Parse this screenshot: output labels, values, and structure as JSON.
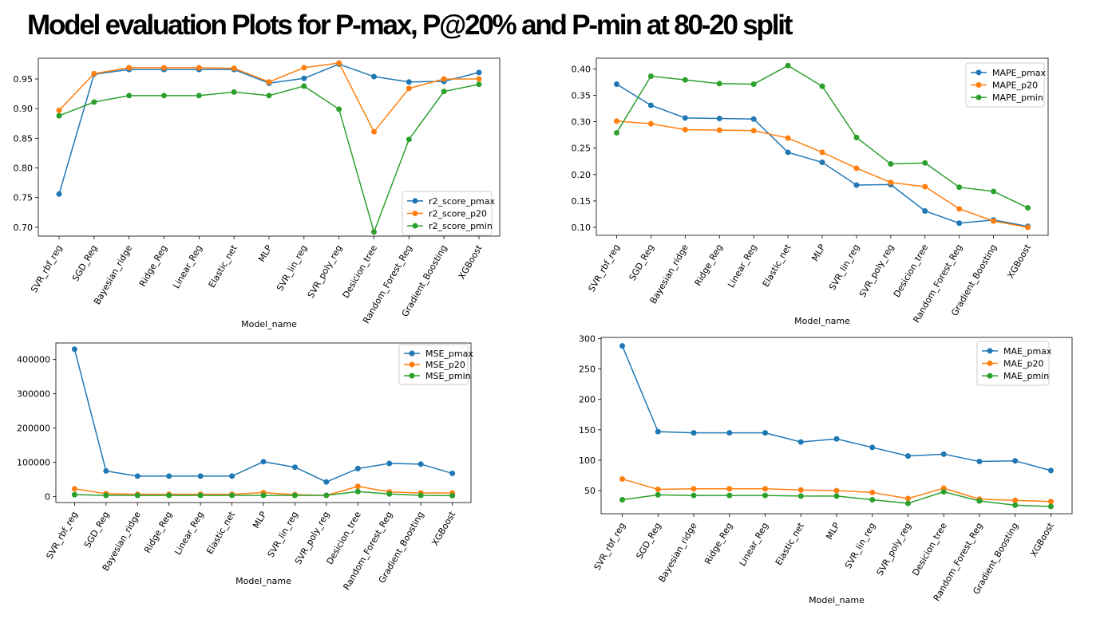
{
  "page": {
    "title": "Model evaluation Plots for P-max, P@20% and P-min at 80-20 split"
  },
  "colors": {
    "series1": "#1f77b4",
    "series2": "#ff7f0e",
    "series3": "#2ca02c"
  },
  "chart_data": [
    {
      "type": "line",
      "xlabel": "Model_name",
      "ylabel": "",
      "legend_position": "lower-right",
      "ylim": [
        0.685,
        0.985
      ],
      "yticks": [
        0.7,
        0.75,
        0.8,
        0.85,
        0.9,
        0.95
      ],
      "ytick_labels": [
        "0.70",
        "0.75",
        "0.80",
        "0.85",
        "0.90",
        "0.95"
      ],
      "categories": [
        "SVR_rbf_reg",
        "SGD_Reg",
        "Bayesian_ridge",
        "Ridge_Reg",
        "Linear_Reg",
        "Elastic_net",
        "MLP",
        "SVR_lin_reg",
        "SVR_poly_reg",
        "Desicion_tree",
        "Random_Forest_Reg",
        "Gradient_Boosting",
        "XGBoost"
      ],
      "series": [
        {
          "name": "r2_score_pmax",
          "values": [
            0.756,
            0.958,
            0.966,
            0.966,
            0.966,
            0.966,
            0.943,
            0.951,
            0.975,
            0.954,
            0.945,
            0.946,
            0.961
          ]
        },
        {
          "name": "r2_score_p20",
          "values": [
            0.897,
            0.959,
            0.969,
            0.969,
            0.969,
            0.968,
            0.945,
            0.969,
            0.977,
            0.861,
            0.934,
            0.95,
            0.95
          ]
        },
        {
          "name": "r2_score_pmin",
          "values": [
            0.888,
            0.911,
            0.922,
            0.922,
            0.922,
            0.928,
            0.922,
            0.938,
            0.899,
            0.692,
            0.848,
            0.929,
            0.941
          ]
        }
      ]
    },
    {
      "type": "line",
      "xlabel": "Model_name",
      "ylabel": "",
      "legend_position": "upper-right",
      "ylim": [
        0.085,
        0.42
      ],
      "yticks": [
        0.1,
        0.15,
        0.2,
        0.25,
        0.3,
        0.35,
        0.4
      ],
      "ytick_labels": [
        "0.10",
        "0.15",
        "0.20",
        "0.25",
        "0.30",
        "0.35",
        "0.40"
      ],
      "categories": [
        "SVR_rbf_reg",
        "SGD_Reg",
        "Bayesian_ridge",
        "Ridge_Reg",
        "Linear_Reg",
        "Elastic_net",
        "MLP",
        "SVR_lin_reg",
        "SVR_poly_reg",
        "Desicion_tree",
        "Random_Forest_Reg",
        "Gradient_Boosting",
        "XGBoost"
      ],
      "series": [
        {
          "name": "MAPE_pmax",
          "values": [
            0.371,
            0.331,
            0.307,
            0.306,
            0.305,
            0.242,
            0.223,
            0.18,
            0.181,
            0.131,
            0.108,
            0.114,
            0.102
          ]
        },
        {
          "name": "MAPE_p20",
          "values": [
            0.301,
            0.296,
            0.285,
            0.284,
            0.283,
            0.269,
            0.242,
            0.212,
            0.185,
            0.177,
            0.135,
            0.112,
            0.1
          ]
        },
        {
          "name": "MAPE_pmin",
          "values": [
            0.279,
            0.386,
            0.379,
            0.372,
            0.371,
            0.406,
            0.367,
            0.27,
            0.22,
            0.222,
            0.176,
            0.168,
            0.137
          ]
        }
      ]
    },
    {
      "type": "line",
      "xlabel": "Model_name",
      "ylabel": "",
      "legend_position": "upper-right",
      "ylim": [
        -17000,
        448000
      ],
      "yticks": [
        0,
        100000,
        200000,
        300000,
        400000
      ],
      "ytick_labels": [
        "0",
        "100000",
        "200000",
        "300000",
        "400000"
      ],
      "categories": [
        "SVR_rbf_reg",
        "SGD_Reg",
        "Bayesian_ridge",
        "Ridge_Reg",
        "Linear_Reg",
        "Elastic_net",
        "MLP",
        "SVR_lin_reg",
        "SVR_poly_reg",
        "Desicion_tree",
        "Random_Forest_Reg",
        "Gradient_Boosting",
        "XGBoost"
      ],
      "series": [
        {
          "name": "MSE_pmax",
          "values": [
            430000,
            75000,
            60000,
            60000,
            60000,
            60000,
            102000,
            86000,
            43000,
            82000,
            97000,
            95000,
            68000
          ]
        },
        {
          "name": "MSE_p20",
          "values": [
            23000,
            9000,
            7000,
            7000,
            7000,
            7000,
            12000,
            6000,
            4000,
            30000,
            14000,
            11000,
            11000
          ]
        },
        {
          "name": "MSE_pmin",
          "values": [
            6000,
            4000,
            4000,
            4000,
            4000,
            4000,
            4000,
            4000,
            4000,
            15000,
            8000,
            4000,
            3000
          ]
        }
      ]
    },
    {
      "type": "line",
      "xlabel": "Model_name",
      "ylabel": "",
      "legend_position": "upper-right",
      "ylim": [
        12,
        302
      ],
      "yticks": [
        50,
        100,
        150,
        200,
        250,
        300
      ],
      "ytick_labels": [
        "50",
        "100",
        "150",
        "200",
        "250",
        "300"
      ],
      "categories": [
        "SVR_rbf_reg",
        "SGD_Reg",
        "Bayesian_ridge",
        "Ridge_Reg",
        "Linear_Reg",
        "Elastic_net",
        "MLP",
        "SVR_lin_reg",
        "SVR_poly_reg",
        "Desicion_tree",
        "Random_Forest_Reg",
        "Gradient_Boosting",
        "XGBoost"
      ],
      "series": [
        {
          "name": "MAE_pmax",
          "values": [
            288,
            147,
            145,
            145,
            145,
            130,
            135,
            121,
            107,
            110,
            98,
            99,
            83
          ]
        },
        {
          "name": "MAE_p20",
          "values": [
            69,
            52,
            53,
            53,
            53,
            51,
            50,
            47,
            37,
            54,
            36,
            34,
            32
          ]
        },
        {
          "name": "MAE_pmin",
          "values": [
            35,
            43,
            42,
            42,
            42,
            41,
            41,
            35,
            29,
            48,
            33,
            26,
            24
          ]
        }
      ]
    }
  ]
}
